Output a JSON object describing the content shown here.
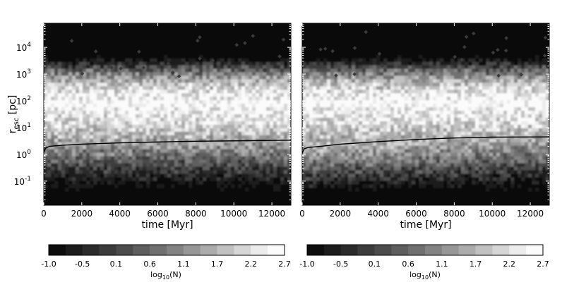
{
  "chart_data": [
    {
      "type": "heatmap",
      "panel": "left",
      "xlabel": "time [Myr]",
      "ylabel_base": "r",
      "ylabel_sub": "esc",
      "ylabel_unit": " [pc]",
      "xlim": [
        0,
        13000
      ],
      "ylim_log10": [
        -1.9,
        4.9
      ],
      "yscale": "log",
      "x_ticks": [
        "0",
        "2000",
        "4000",
        "6000",
        "8000",
        "10000",
        "12000"
      ],
      "x_tick_values": [
        0,
        2000,
        4000,
        6000,
        8000,
        10000,
        12000
      ],
      "y_ticks": [
        {
          "base": "10",
          "exp": "-1",
          "log": -1
        },
        {
          "base": "10",
          "exp": "0",
          "log": 0
        },
        {
          "base": "10",
          "exp": "1",
          "log": 1
        },
        {
          "base": "10",
          "exp": "2",
          "log": 2
        },
        {
          "base": "10",
          "exp": "3",
          "log": 3
        },
        {
          "base": "10",
          "exp": "4",
          "log": 4
        }
      ],
      "density_peak_log10_r": 1.9,
      "line": {
        "x": [
          0,
          100,
          300,
          1000,
          2000,
          4000,
          6000,
          8000,
          10000,
          13000
        ],
        "y": [
          1.2,
          1.7,
          2.0,
          2.2,
          2.4,
          2.7,
          2.9,
          3.1,
          3.2,
          3.4
        ]
      }
    },
    {
      "type": "heatmap",
      "panel": "right",
      "xlabel": "time [Myr]",
      "xlim": [
        0,
        13000
      ],
      "ylim_log10": [
        -1.9,
        4.9
      ],
      "yscale": "log",
      "x_ticks": [
        "0",
        "2000",
        "4000",
        "6000",
        "8000",
        "10000",
        "12000"
      ],
      "x_tick_values": [
        0,
        2000,
        4000,
        6000,
        8000,
        10000,
        12000
      ],
      "density_peak_log10_r": 1.9,
      "line": {
        "x": [
          0,
          100,
          300,
          1000,
          2000,
          4000,
          6000,
          8000,
          10000,
          13000
        ],
        "y": [
          1.1,
          1.6,
          1.8,
          2.0,
          2.4,
          3.0,
          3.6,
          4.1,
          4.4,
          4.5
        ]
      }
    }
  ],
  "colorbars": [
    {
      "label_base": "log",
      "label_sub": "10",
      "label_rest": "(N)",
      "ticks": [
        "-1.0",
        "-0.5",
        "0.1",
        "0.6",
        "1.1",
        "1.7",
        "2.2",
        "2.7"
      ],
      "range": [
        -1.0,
        2.7
      ],
      "levels": [
        "#0d0d0d",
        "#1c1c1c",
        "#2b2b2b",
        "#3c3c3c",
        "#4c4c4c",
        "#5e5e5e",
        "#707070",
        "#838383",
        "#979797",
        "#acacac",
        "#c1c1c1",
        "#d6d6d6",
        "#ececec",
        "#fbfbfb"
      ]
    },
    {
      "label_base": "log",
      "label_sub": "10",
      "label_rest": "(N)",
      "ticks": [
        "-1.0",
        "-0.5",
        "0.1",
        "0.6",
        "1.1",
        "1.7",
        "2.2",
        "2.7"
      ],
      "range": [
        -1.0,
        2.7
      ],
      "levels": [
        "#0d0d0d",
        "#1c1c1c",
        "#2b2b2b",
        "#3c3c3c",
        "#4c4c4c",
        "#5e5e5e",
        "#707070",
        "#838383",
        "#979797",
        "#acacac",
        "#c1c1c1",
        "#d6d6d6",
        "#ececec",
        "#fbfbfb"
      ]
    }
  ]
}
